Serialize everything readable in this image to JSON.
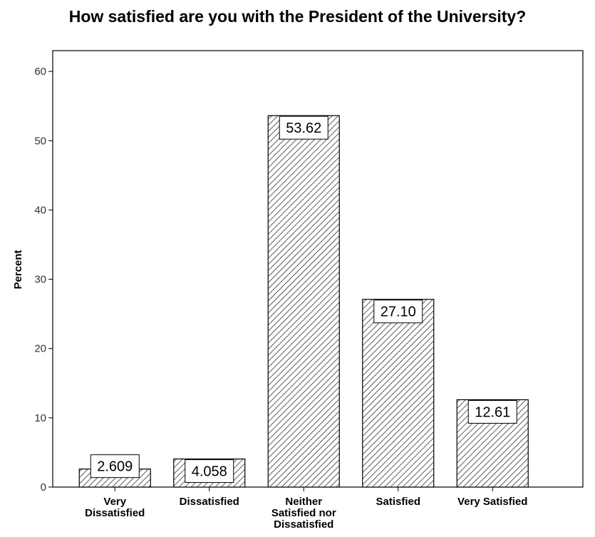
{
  "chart_data": {
    "type": "bar",
    "title": "How satisfied are you with the President of the University?",
    "xlabel": "",
    "ylabel": "Percent",
    "ylim": [
      0,
      63
    ],
    "yticks": [
      0,
      10,
      20,
      30,
      40,
      50,
      60
    ],
    "grid": false,
    "bar_fill": "hatched diagonal",
    "categories": [
      [
        "Very",
        "Dissatisfied"
      ],
      [
        "Dissatisfied"
      ],
      [
        "Neither",
        "Satisfied nor",
        "Dissatisfied"
      ],
      [
        "Satisfied"
      ],
      [
        "Very Satisfied"
      ]
    ],
    "values": [
      2.609,
      4.058,
      53.62,
      27.1,
      12.61
    ],
    "value_labels": [
      "2.609",
      "4.058",
      "53.62",
      "27.10",
      "12.61"
    ]
  }
}
